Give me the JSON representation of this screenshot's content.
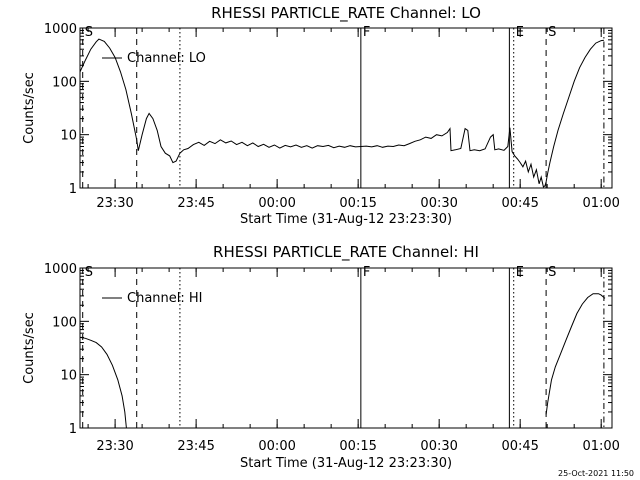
{
  "chart_data": [
    {
      "type": "line",
      "title": "RHESSI PARTICLE_RATE Channel: LO",
      "xlabel": "Start Time (31-Aug-12 23:23:30)",
      "ylabel": "Counts/sec",
      "yscale": "log",
      "ylim": [
        1,
        1000
      ],
      "xlim_minutes": [
        0,
        98.5
      ],
      "x_ticks": [
        "23:30",
        "23:45",
        "00:00",
        "00:15",
        "00:30",
        "00:45",
        "01:00"
      ],
      "y_ticks": [
        "1",
        "10",
        "100",
        "1000"
      ],
      "legend": "Channel: LO",
      "markers": [
        {
          "label": "S",
          "t": 0.5,
          "style": "dashed"
        },
        {
          "label": "",
          "t": 10.5,
          "style": "dashed"
        },
        {
          "label": "",
          "t": 18.5,
          "style": "dotted"
        },
        {
          "label": "F",
          "t": 52.0,
          "style": "solid"
        },
        {
          "label": "",
          "t": 79.5,
          "style": "solid"
        },
        {
          "label": "E",
          "t": 80.3,
          "style": "dotted"
        },
        {
          "label": "S",
          "t": 86.3,
          "style": "dashed"
        },
        {
          "label": "",
          "t": 97.0,
          "style": "dashdot"
        }
      ],
      "series": [
        {
          "name": "Channel: LO",
          "points": [
            [
              0,
              150
            ],
            [
              1,
              250
            ],
            [
              2,
              400
            ],
            [
              3,
              550
            ],
            [
              3.5,
              620
            ],
            [
              4.5,
              560
            ],
            [
              5.5,
              420
            ],
            [
              6.5,
              280
            ],
            [
              7.5,
              150
            ],
            [
              8.5,
              70
            ],
            [
              9.5,
              25
            ],
            [
              10.5,
              8
            ],
            [
              10.8,
              5
            ],
            [
              11.5,
              10
            ],
            [
              12.3,
              20
            ],
            [
              12.8,
              25
            ],
            [
              13.5,
              20
            ],
            [
              14.3,
              12
            ],
            [
              15,
              6
            ],
            [
              15.8,
              4.5
            ],
            [
              16.6,
              4
            ],
            [
              17.2,
              3
            ],
            [
              17.8,
              3.2
            ],
            [
              18.5,
              4.5
            ],
            [
              19.2,
              5.2
            ],
            [
              20,
              5.5
            ],
            [
              21,
              6.5
            ],
            [
              22,
              7.2
            ],
            [
              23,
              6.3
            ],
            [
              24,
              7.5
            ],
            [
              25,
              6.8
            ],
            [
              26,
              8
            ],
            [
              27,
              7
            ],
            [
              28,
              7.6
            ],
            [
              29,
              6.5
            ],
            [
              30,
              7.2
            ],
            [
              31,
              6.2
            ],
            [
              32,
              7
            ],
            [
              33,
              6
            ],
            [
              34,
              6.6
            ],
            [
              35,
              5.8
            ],
            [
              36,
              6.4
            ],
            [
              37,
              5.6
            ],
            [
              38,
              6.3
            ],
            [
              39,
              5.9
            ],
            [
              40,
              6.4
            ],
            [
              41,
              5.8
            ],
            [
              42,
              6.2
            ],
            [
              43,
              5.6
            ],
            [
              44,
              6.2
            ],
            [
              45,
              6
            ],
            [
              46,
              6.3
            ],
            [
              47,
              5.7
            ],
            [
              48,
              6.1
            ],
            [
              49,
              5.8
            ],
            [
              50,
              6.2
            ],
            [
              51,
              5.9
            ],
            [
              52,
              6
            ],
            [
              53,
              6.1
            ],
            [
              54,
              5.9
            ],
            [
              55,
              6.2
            ],
            [
              56,
              5.8
            ],
            [
              57,
              6.1
            ],
            [
              58,
              6
            ],
            [
              59,
              6.4
            ],
            [
              60,
              6.2
            ],
            [
              61,
              6.8
            ],
            [
              62,
              7.5
            ],
            [
              63,
              8
            ],
            [
              64,
              9
            ],
            [
              65,
              8.5
            ],
            [
              66,
              10
            ],
            [
              67,
              9.5
            ],
            [
              68,
              11
            ],
            [
              68.5,
              13
            ],
            [
              68.7,
              5
            ],
            [
              69.5,
              5.2
            ],
            [
              70.5,
              5.5
            ],
            [
              71.3,
              13
            ],
            [
              71.8,
              12
            ],
            [
              72.2,
              5
            ],
            [
              73,
              5.2
            ],
            [
              74,
              5
            ],
            [
              75,
              5.4
            ],
            [
              76,
              9
            ],
            [
              76.5,
              10
            ],
            [
              76.8,
              5.2
            ],
            [
              77.5,
              5.4
            ],
            [
              78.5,
              5.1
            ],
            [
              79.2,
              6
            ],
            [
              79.6,
              13.5
            ],
            [
              80,
              4.8
            ],
            [
              80.5,
              4
            ],
            [
              81,
              3.5
            ],
            [
              81.5,
              3
            ],
            [
              82,
              2.5
            ],
            [
              82.5,
              3.2
            ],
            [
              83,
              2
            ],
            [
              83.5,
              2.8
            ],
            [
              84,
              1.6
            ],
            [
              84.5,
              2.2
            ],
            [
              85,
              1.2
            ],
            [
              85.4,
              1.6
            ],
            [
              85.8,
              1.05
            ],
            [
              86.1,
              1.1
            ],
            [
              86.3,
              1.3
            ],
            [
              86.6,
              1.9
            ],
            [
              87,
              3
            ],
            [
              87.7,
              6
            ],
            [
              88.5,
              12
            ],
            [
              89.5,
              25
            ],
            [
              90.5,
              50
            ],
            [
              91.5,
              100
            ],
            [
              92.5,
              180
            ],
            [
              93.5,
              280
            ],
            [
              94.5,
              400
            ],
            [
              95.5,
              520
            ],
            [
              96.5,
              580
            ],
            [
              97,
              590
            ]
          ]
        }
      ]
    },
    {
      "type": "line",
      "title": "RHESSI PARTICLE_RATE Channel: HI",
      "xlabel": "Start Time (31-Aug-12 23:23:30)",
      "ylabel": "Counts/sec",
      "yscale": "log",
      "ylim": [
        1,
        1000
      ],
      "xlim_minutes": [
        0,
        98.5
      ],
      "x_ticks": [
        "23:30",
        "23:45",
        "00:00",
        "00:15",
        "00:30",
        "00:45",
        "01:00"
      ],
      "y_ticks": [
        "1",
        "10",
        "100",
        "1000"
      ],
      "legend": "Channel: HI",
      "markers": [
        {
          "label": "S",
          "t": 0.5,
          "style": "dashed"
        },
        {
          "label": "",
          "t": 10.5,
          "style": "dashed"
        },
        {
          "label": "",
          "t": 18.5,
          "style": "dotted"
        },
        {
          "label": "F",
          "t": 52.0,
          "style": "solid"
        },
        {
          "label": "",
          "t": 79.5,
          "style": "solid"
        },
        {
          "label": "E",
          "t": 80.3,
          "style": "dotted"
        },
        {
          "label": "S",
          "t": 86.3,
          "style": "dashed"
        },
        {
          "label": "",
          "t": 97.0,
          "style": "dashdot"
        }
      ],
      "series": [
        {
          "name": "Channel: HI",
          "points": [
            [
              0,
              50
            ],
            [
              1,
              48
            ],
            [
              2,
              44
            ],
            [
              3,
              40
            ],
            [
              4,
              33
            ],
            [
              5,
              24
            ],
            [
              6,
              15
            ],
            [
              7,
              8
            ],
            [
              7.8,
              4
            ],
            [
              8.3,
              2
            ],
            [
              8.6,
              1
            ]
          ]
        },
        {
          "name": "Channel: HI",
          "points": [
            [
              86.3,
              1.8
            ],
            [
              86.6,
              3
            ],
            [
              87.3,
              8
            ],
            [
              88,
              14
            ],
            [
              89,
              25
            ],
            [
              90,
              45
            ],
            [
              91,
              80
            ],
            [
              92,
              140
            ],
            [
              93,
              210
            ],
            [
              94,
              280
            ],
            [
              95,
              330
            ],
            [
              96,
              330
            ],
            [
              96.5,
              310
            ],
            [
              97,
              280
            ],
            [
              97.2,
              270
            ]
          ]
        }
      ]
    }
  ],
  "footer": {
    "timestamp": "25-Oct-2021 11:50"
  }
}
